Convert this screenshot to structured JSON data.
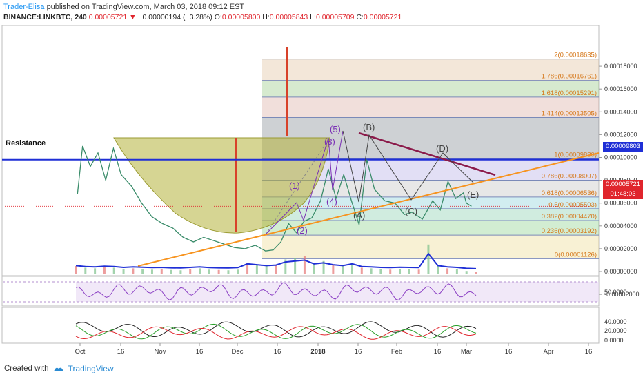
{
  "header": {
    "author": "Trader-Elisa",
    "published_text": "published on TradingView.com, March 03, 2018 09:12 EST",
    "symbol": "BINANCE:LINKBTC, 240",
    "last": "0.00005721",
    "change": "−0.00000194 (−3.28%)",
    "o_label": "O:",
    "o": "0.00005800",
    "h_label": "H:",
    "h": "0.00005843",
    "l_label": "L:",
    "l": "0.00005709",
    "c_label": "C:",
    "c": "0.00005721"
  },
  "footer": {
    "created_with": "Created with",
    "brand": "TradingView"
  },
  "colors": {
    "fib_line": "#7b8ab8",
    "price_down": "#e0252d",
    "resistance": "#1f2fd6",
    "trend": "#f7931e",
    "triangle": "#8b1a4a"
  },
  "chart_data": [
    {
      "type": "line",
      "title": "",
      "price_axis": {
        "ticks": [
          "0.00018000",
          "0.00016000",
          "0.00014000",
          "0.00012000",
          "0.00010000",
          "0.00008000",
          "0.00006000",
          "0.00004000",
          "0.00002000",
          "0.00000000",
          "-0.00002000"
        ],
        "current_price_tag": "0.00005721",
        "countdown_tag": "01:48:03",
        "resistance_tag": "0.00009803"
      },
      "time_axis": [
        "Oct",
        "16",
        "Nov",
        "16",
        "Dec",
        "16",
        "2018",
        "16",
        "Feb",
        "16",
        "Mar",
        "16",
        "Apr",
        "16"
      ],
      "resistance": {
        "label": "Resistance",
        "value": 9.803e-05
      },
      "fib_levels": [
        {
          "ratio": "2",
          "value": 0.00018635,
          "label": "2(0.00018635)"
        },
        {
          "ratio": "1.786",
          "value": 0.00016761,
          "label": "1.786(0.00016761)"
        },
        {
          "ratio": "1.618",
          "value": 0.00015291,
          "label": "1.618(0.00015291)"
        },
        {
          "ratio": "1.414",
          "value": 0.00013505,
          "label": "1.414(0.00013505)"
        },
        {
          "ratio": "1",
          "value": 9.88e-05,
          "label": "1(0.00009880)"
        },
        {
          "ratio": "0.786",
          "value": 8.007e-05,
          "label": "0.786(0.00008007)"
        },
        {
          "ratio": "0.618",
          "value": 6.536e-05,
          "label": "0.618(0.00006536)"
        },
        {
          "ratio": "0.5",
          "value": 5.503e-05,
          "label": "0.5(0.00005503)"
        },
        {
          "ratio": "0.382",
          "value": 4.47e-05,
          "label": "0.382(0.00004470)"
        },
        {
          "ratio": "0.236",
          "value": 3.192e-05,
          "label": "0.236(0.00003192)"
        },
        {
          "ratio": "0",
          "value": 1.126e-05,
          "label": "0(0.00001126)"
        }
      ],
      "wave_labels": [
        "(1)",
        "(2)",
        "(3)",
        "(4)",
        "(5)",
        "(A)",
        "(B)",
        "(C)",
        "(D)",
        "(E)"
      ],
      "price_series": [
        [
          "Sep 30",
          6.8e-05
        ],
        [
          "Oct 2",
          0.00011
        ],
        [
          "Oct 5",
          9.2e-05
        ],
        [
          "Oct 8",
          0.000104
        ],
        [
          "Oct 11",
          8e-05
        ],
        [
          "Oct 14",
          0.000108
        ],
        [
          "Oct 17",
          8.5e-05
        ],
        [
          "Oct 21",
          7.5e-05
        ],
        [
          "Oct 25",
          6e-05
        ],
        [
          "Oct 29",
          4.8e-05
        ],
        [
          "Nov 2",
          4.2e-05
        ],
        [
          "Nov 6",
          3.8e-05
        ],
        [
          "Nov 10",
          3e-05
        ],
        [
          "Nov 14",
          2.6e-05
        ],
        [
          "Nov 18",
          3e-05
        ],
        [
          "Nov 22",
          2.7e-05
        ],
        [
          "Nov 26",
          2.4e-05
        ],
        [
          "Nov 30",
          2.1e-05
        ],
        [
          "Dec 4",
          2e-05
        ],
        [
          "Dec 8",
          2.3e-05
        ],
        [
          "Dec 12",
          1.8e-05
        ],
        [
          "Dec 15",
          1.9e-05
        ],
        [
          "Dec 18",
          2.6e-05
        ],
        [
          "Dec 21",
          4.2e-05
        ],
        [
          "Dec 24",
          3.4e-05
        ],
        [
          "Dec 27",
          4.4e-05
        ],
        [
          "Dec 30",
          4.7e-05
        ],
        [
          "Jan 2",
          6.2e-05
        ],
        [
          "Jan 5",
          9e-05
        ],
        [
          "Jan 8",
          6.4e-05
        ],
        [
          "Jan 11",
          8.5e-05
        ],
        [
          "Jan 14",
          6.2e-05
        ],
        [
          "Jan 17",
          4.1e-05
        ],
        [
          "Jan 20",
          9.8e-05
        ],
        [
          "Jan 23",
          7.2e-05
        ],
        [
          "Jan 27",
          6.2e-05
        ],
        [
          "Jan 31",
          6e-05
        ],
        [
          "Feb 4",
          5e-05
        ],
        [
          "Feb 7",
          5.2e-05
        ],
        [
          "Feb 11",
          4.6e-05
        ],
        [
          "Feb 15",
          6.2e-05
        ],
        [
          "Feb 18",
          5.4e-05
        ],
        [
          "Feb 21",
          7.9e-05
        ],
        [
          "Feb 24",
          6.4e-05
        ],
        [
          "Feb 27",
          6.9e-05
        ],
        [
          "Mar 1",
          6e-05
        ],
        [
          "Mar 3",
          5.72e-05
        ]
      ],
      "volume_series": [
        0.25,
        0.2,
        0.18,
        0.22,
        0.2,
        0.15,
        0.18,
        0.16,
        0.14,
        0.15,
        0.13,
        0.12,
        0.15,
        0.18,
        0.14,
        0.13,
        0.12,
        0.14,
        0.35,
        0.3,
        0.25,
        0.28,
        0.45,
        0.5,
        0.55,
        0.35,
        0.4,
        0.3,
        0.25,
        0.35,
        0.2,
        0.18,
        0.15,
        0.14,
        0.16,
        0.15,
        0.14,
        0.9,
        0.25,
        0.18,
        0.15,
        0.1,
        0.08
      ],
      "rsi": {
        "ticks": [
          "50.0000"
        ]
      },
      "oscillator": {
        "ticks": [
          "40.0000",
          "20.0000",
          "0.0000"
        ]
      }
    }
  ]
}
